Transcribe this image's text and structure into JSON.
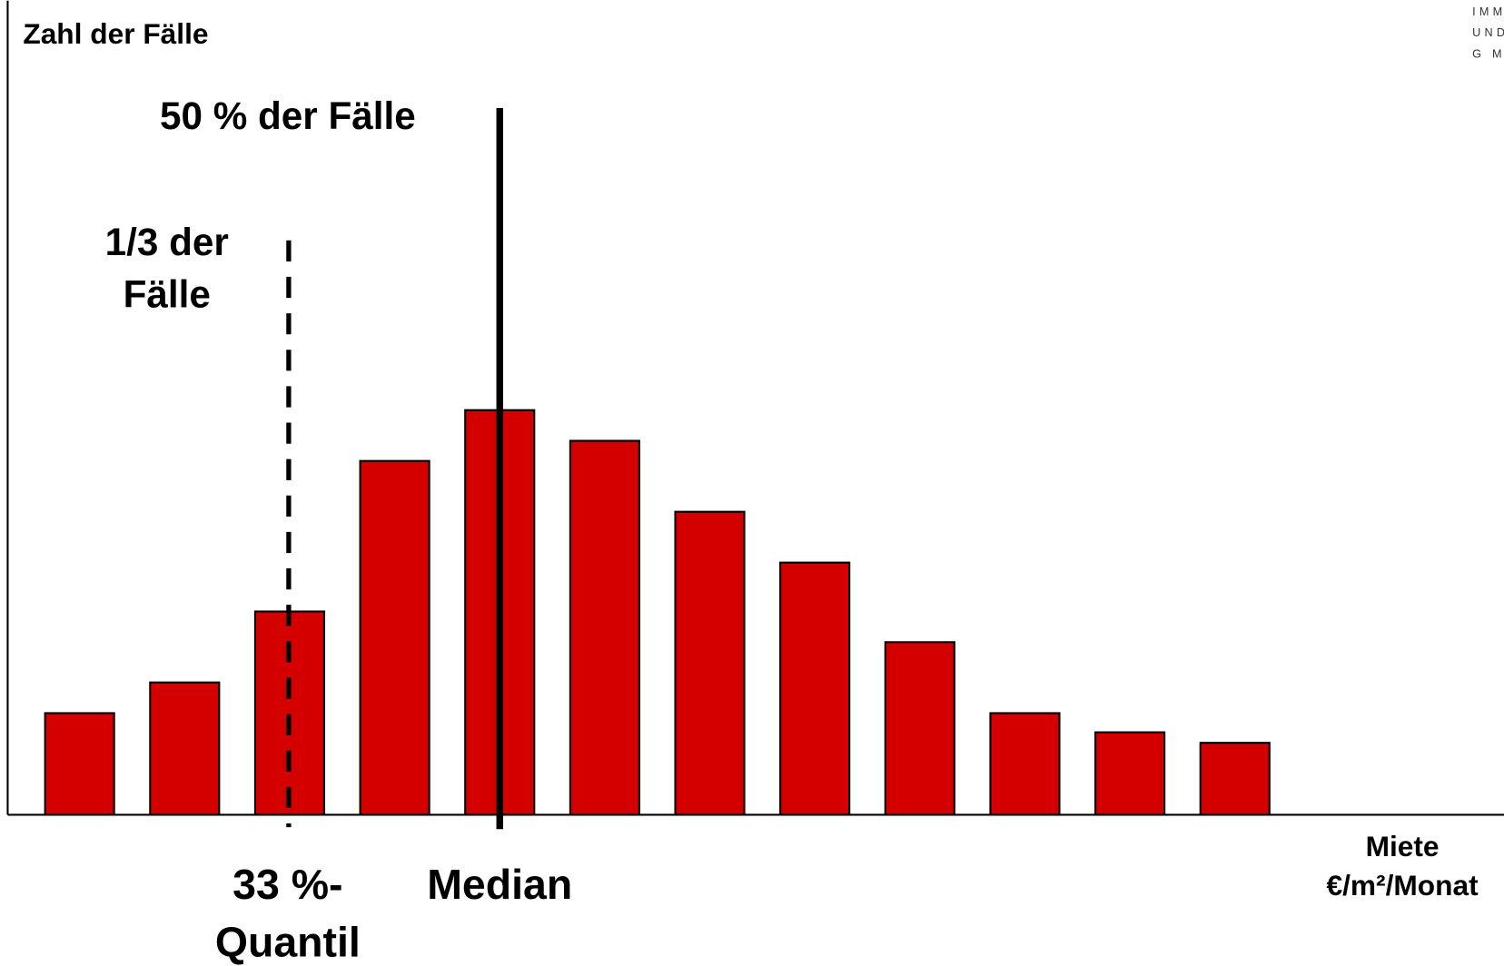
{
  "chart_data": {
    "type": "bar",
    "y_label": "Zahl der Fälle",
    "x_label": [
      "Miete",
      "€/m²/Monat"
    ],
    "annotations": {
      "median_top": "50 % der Fälle",
      "quantile_top": [
        "1/3 der",
        "Fälle"
      ],
      "quantile_bottom": [
        "33 %-",
        "Quantil"
      ],
      "median_bottom": "Median"
    },
    "logo": [
      "IMMO",
      "UND",
      "G M"
    ],
    "categories": [
      null,
      null,
      null,
      null,
      null,
      null,
      null,
      null,
      null,
      null,
      null,
      null
    ],
    "values": [
      106,
      138,
      212,
      369,
      422,
      390,
      316,
      263,
      180,
      106,
      86,
      75
    ],
    "color": "#d40000",
    "ylim": [
      0,
      849
    ]
  }
}
